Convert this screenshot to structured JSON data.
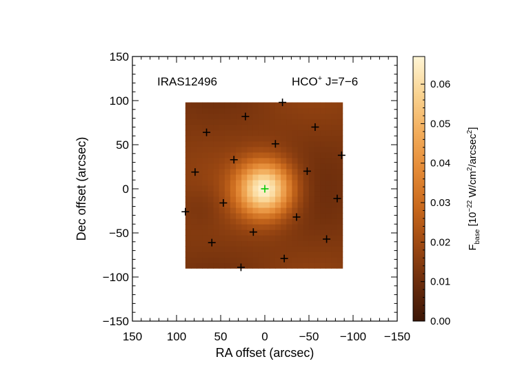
{
  "chart_data": {
    "type": "heatmap",
    "source_label": "IRAS12496",
    "line_label": {
      "prefix": "HCO",
      "superscript": "+",
      "suffix": " J=7−6"
    },
    "xlabel": "RA offset (arcsec)",
    "ylabel": "Dec offset (arcsec)",
    "xlim": [
      150,
      -150
    ],
    "ylim": [
      -150,
      150
    ],
    "xticks": [
      150,
      100,
      50,
      0,
      -50,
      -100,
      -150
    ],
    "xtick_labels": [
      "150",
      "100",
      "50",
      "0",
      "−50",
      "−100",
      "−150"
    ],
    "yticks": [
      150,
      100,
      50,
      0,
      -50,
      -100,
      -150
    ],
    "ytick_labels": [
      "150",
      "100",
      "50",
      "0",
      "−50",
      "−100",
      "−150"
    ],
    "map_extent": {
      "x": [
        90,
        -88
      ],
      "y": [
        -90,
        98
      ]
    },
    "grid_cells": {
      "nx": 28,
      "ny": 30
    },
    "peak": {
      "x": 0,
      "y": 0,
      "value": 0.066
    },
    "background_level": 0.014,
    "colorbar": {
      "min": 0.0,
      "max": 0.067,
      "ticks": [
        0.0,
        0.01,
        0.02,
        0.03,
        0.04,
        0.05,
        0.06
      ],
      "tick_labels": [
        "0.00",
        "0.01",
        "0.02",
        "0.03",
        "0.04",
        "0.05",
        "0.06"
      ],
      "label": {
        "f": "F",
        "f_sub": "base",
        "unit_a": " [10",
        "exp1": "−22",
        "unit_b": " W/cm",
        "exp2": "2",
        "unit_c": "/arcsec",
        "exp3": "2",
        "unit_d": "]"
      },
      "colormap": [
        "#3b1606",
        "#6a2c0c",
        "#9c4812",
        "#c8681c",
        "#e48a36",
        "#f2ad5c",
        "#f9d391",
        "#fff6d6"
      ]
    },
    "markers": {
      "center": {
        "x": 0,
        "y": 0,
        "color": "#00c800"
      },
      "pixels": [
        {
          "x": -20,
          "y": 98
        },
        {
          "x": 22,
          "y": 82
        },
        {
          "x": 66,
          "y": 64
        },
        {
          "x": -57,
          "y": 70
        },
        {
          "x": -12,
          "y": 51
        },
        {
          "x": 35,
          "y": 33
        },
        {
          "x": 79,
          "y": 19
        },
        {
          "x": -48,
          "y": 20
        },
        {
          "x": -87,
          "y": 38
        },
        {
          "x": 47,
          "y": -16
        },
        {
          "x": -82,
          "y": -11
        },
        {
          "x": 90,
          "y": -26
        },
        {
          "x": -36,
          "y": -32
        },
        {
          "x": 13,
          "y": -49
        },
        {
          "x": 60,
          "y": -61
        },
        {
          "x": -70,
          "y": -57
        },
        {
          "x": -22,
          "y": -79
        },
        {
          "x": 27,
          "y": -89
        }
      ]
    }
  }
}
